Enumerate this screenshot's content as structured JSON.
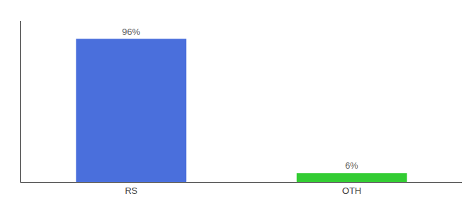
{
  "chart_data": {
    "type": "bar",
    "categories": [
      "RS",
      "OTH"
    ],
    "values": [
      96,
      6
    ],
    "value_labels": [
      "96%",
      "6%"
    ],
    "colors": [
      "#4a6fdc",
      "#33cc33"
    ],
    "ylim": [
      0,
      108
    ],
    "grid": false,
    "data_labels": true,
    "tick_labels": "x"
  }
}
